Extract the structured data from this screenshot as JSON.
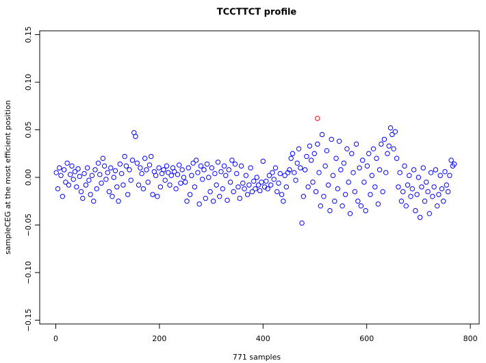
{
  "chart_data": {
    "type": "scatter",
    "title": "TCCTTCT profile",
    "x_label": "771 samples",
    "y_label": "sampleCEG at the most efficient position",
    "xlim": [
      -31,
      817
    ],
    "ylim": [
      -0.154,
      0.154
    ],
    "xticks": [
      0,
      200,
      400,
      600,
      800
    ],
    "yticks": [
      {
        "value": -0.15,
        "label": "−0.15"
      },
      {
        "value": -0.1,
        "label": "−0.10"
      },
      {
        "value": -0.05,
        "label": "−0.05"
      },
      {
        "value": 0,
        "label": "0.00"
      },
      0.05,
      {
        "value": 0.1,
        "label": "0.10"
      },
      0.15
    ],
    "series": [
      {
        "color": "#0000ff",
        "x": [
          1,
          4,
          7,
          10,
          13,
          16,
          19,
          22,
          25,
          28,
          31,
          34,
          37,
          40,
          43,
          46,
          49,
          52,
          55,
          58,
          61,
          64,
          67,
          70,
          73,
          76,
          79,
          82,
          85,
          88,
          91,
          94,
          97,
          100,
          103,
          106,
          109,
          112,
          115,
          118,
          121,
          124,
          127,
          130,
          133,
          136,
          139,
          142,
          145,
          148,
          151,
          154,
          157,
          160,
          163,
          166,
          169,
          172,
          175,
          178,
          181,
          184,
          187,
          190,
          193,
          196,
          199,
          202,
          205,
          208,
          211,
          214,
          217,
          220,
          223,
          226,
          229,
          232,
          235,
          238,
          241,
          244,
          247,
          250,
          253,
          256,
          259,
          262,
          265,
          268,
          271,
          274,
          277,
          280,
          283,
          286,
          289,
          292,
          295,
          298,
          301,
          304,
          307,
          310,
          313,
          316,
          319,
          322,
          325,
          328,
          331,
          334,
          337,
          340,
          343,
          346,
          349,
          352,
          355,
          358,
          361,
          364,
          367,
          370,
          373,
          376,
          379,
          382,
          385,
          388,
          391,
          394,
          397,
          400,
          403,
          406,
          409,
          412,
          415,
          418,
          421,
          424,
          427,
          430,
          433,
          436,
          439,
          442,
          445,
          448,
          451,
          454,
          457,
          460,
          463,
          466,
          469,
          472,
          475,
          478,
          481,
          484,
          487,
          490,
          493,
          496,
          499,
          502,
          505,
          508,
          511,
          514,
          517,
          520,
          523,
          526,
          529,
          532,
          535,
          538,
          541,
          544,
          547,
          550,
          553,
          556,
          559,
          562,
          565,
          568,
          571,
          574,
          577,
          580,
          583,
          586,
          589,
          592,
          595,
          598,
          601,
          604,
          607,
          610,
          613,
          616,
          619,
          622,
          625,
          628,
          631,
          634,
          637,
          640,
          643,
          646,
          649,
          652,
          655,
          658,
          661,
          664,
          667,
          670,
          673,
          676,
          679,
          682,
          685,
          688,
          691,
          694,
          697,
          700,
          703,
          706,
          709,
          712,
          715,
          718,
          721,
          724,
          727,
          730,
          733,
          736,
          739,
          742,
          745,
          748,
          751,
          754,
          757,
          760,
          763,
          766,
          769
        ],
        "values": [
          0.005,
          -0.012,
          0.01,
          0.002,
          -0.02,
          0.008,
          -0.005,
          0.015,
          -0.008,
          0.003,
          0.012,
          -0.002,
          0.006,
          -0.01,
          0.009,
          0.001,
          -0.015,
          -0.022,
          0.004,
          -0.008,
          0.01,
          -0.003,
          -0.018,
          0.002,
          -0.025,
          0.008,
          -0.012,
          0.015,
          0.003,
          -0.006,
          0.02,
          0.012,
          -0.002,
          0.005,
          -0.015,
          0.01,
          -0.02,
          0.0,
          0.007,
          -0.01,
          -0.025,
          0.014,
          0.004,
          -0.008,
          0.022,
          0.012,
          -0.018,
          0.008,
          -0.003,
          0.018,
          0.047,
          0.043,
          0.015,
          -0.008,
          0.01,
          0.004,
          -0.012,
          0.02,
          0.008,
          -0.005,
          0.013,
          0.022,
          -0.018,
          0.006,
          0.002,
          -0.02,
          0.01,
          -0.01,
          0.004,
          0.008,
          -0.003,
          0.012,
          0.005,
          -0.008,
          0.002,
          0.01,
          0.006,
          -0.012,
          0.003,
          0.013,
          -0.006,
          0.008,
          0.0,
          -0.005,
          -0.025,
          0.01,
          -0.018,
          0.002,
          0.015,
          -0.01,
          0.018,
          0.005,
          -0.028,
          0.012,
          -0.002,
          0.008,
          -0.022,
          0.014,
          0.0,
          -0.015,
          0.01,
          -0.025,
          0.004,
          -0.008,
          0.016,
          -0.02,
          0.006,
          -0.012,
          0.012,
          0.002,
          -0.024,
          0.008,
          -0.005,
          0.018,
          -0.015,
          0.014,
          0.004,
          -0.01,
          -0.022,
          0.012,
          -0.006,
          -0.012,
          0.002,
          -0.018,
          -0.008,
          0.01,
          -0.015,
          -0.004,
          -0.012,
          0.0,
          -0.008,
          -0.014,
          -0.005,
          0.017,
          -0.01,
          -0.004,
          -0.012,
          0.002,
          -0.008,
          0.005,
          -0.002,
          0.01,
          -0.015,
          -0.006,
          0.004,
          -0.018,
          -0.025,
          0.002,
          -0.01,
          0.005,
          0.008,
          0.02,
          0.025,
          0.005,
          -0.003,
          0.015,
          0.03,
          0.01,
          -0.048,
          -0.02,
          0.008,
          0.022,
          -0.01,
          0.033,
          0.018,
          -0.005,
          0.025,
          -0.015,
          0.035,
          0.005,
          -0.03,
          0.045,
          -0.02,
          0.012,
          0.028,
          -0.008,
          -0.035,
          0.04,
          0.002,
          -0.025,
          0.02,
          -0.012,
          0.038,
          0.008,
          -0.03,
          0.015,
          -0.018,
          0.03,
          -0.005,
          -0.038,
          0.025,
          0.005,
          -0.015,
          0.035,
          -0.025,
          0.01,
          -0.03,
          0.018,
          -0.005,
          -0.035,
          0.012,
          0.025,
          -0.018,
          0.002,
          0.03,
          -0.01,
          0.02,
          -0.028,
          0.008,
          0.035,
          -0.015,
          0.04,
          0.005,
          0.025,
          0.033,
          0.052,
          0.045,
          0.03,
          0.048,
          0.02,
          -0.01,
          0.005,
          -0.025,
          -0.015,
          0.012,
          -0.03,
          -0.008,
          0.002,
          -0.02,
          -0.012,
          0.008,
          -0.035,
          -0.018,
          0.0,
          -0.042,
          -0.01,
          0.01,
          -0.025,
          -0.005,
          -0.015,
          -0.038,
          0.005,
          -0.02,
          -0.01,
          0.008,
          -0.03,
          -0.018,
          0.002,
          -0.012,
          -0.025,
          0.006,
          -0.008,
          -0.015,
          0.002,
          0.018,
          0.012,
          0.014
        ]
      },
      {
        "color": "#ff0000",
        "x": [
          505
        ],
        "values": [
          0.062
        ]
      }
    ]
  }
}
